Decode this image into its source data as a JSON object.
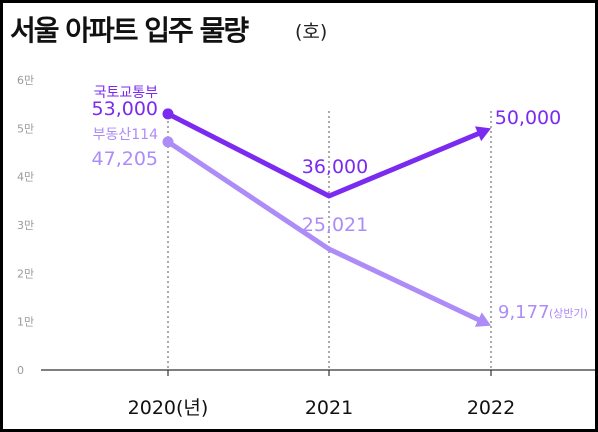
{
  "title": "서울 아파트 입주 물량",
  "unit": "(호)",
  "colors": {
    "series_dark": "#7b2bf0",
    "series_light": "#ad8cf8",
    "axis_text": "#9a9a9a",
    "grid": "#c8c8c8",
    "axis": "#333333"
  },
  "chart_data": {
    "type": "line",
    "x": [
      "2020",
      "2021",
      "2022"
    ],
    "x_tick_labels": [
      "2020(년)",
      "2021",
      "2022"
    ],
    "ylim": [
      0,
      60000
    ],
    "y_ticks": [
      0,
      10000,
      20000,
      30000,
      40000,
      50000,
      60000
    ],
    "y_tick_labels": [
      "0",
      "1만",
      "2만",
      "3만",
      "4만",
      "5만",
      "6만"
    ],
    "grid": "vertical dotted guides at each year",
    "legend": "inline labels at the left end of each series",
    "series": [
      {
        "name": "국토교통부",
        "values": [
          53000,
          36000,
          50000
        ],
        "labels": [
          "53,000",
          "36,000",
          "50,000"
        ]
      },
      {
        "name": "부동산114",
        "values": [
          47205,
          25021,
          9177
        ],
        "labels": [
          "47,205",
          "25,021",
          "9,177"
        ],
        "annotations": [
          "",
          "",
          "(상반기)"
        ]
      }
    ]
  }
}
